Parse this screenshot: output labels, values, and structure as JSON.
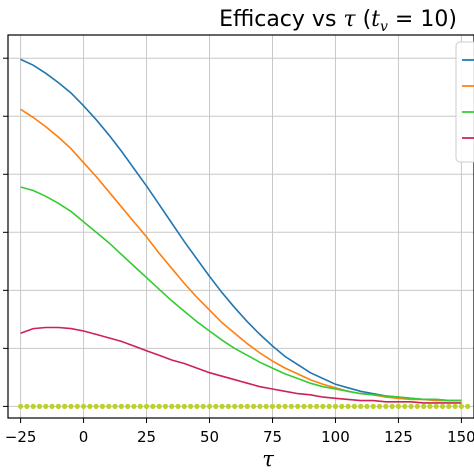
{
  "chart_data": {
    "type": "line",
    "title": "Efficacy vs τ (t_v = 10)",
    "title_parts": {
      "prefix": "Efficacy vs ",
      "tau": "τ",
      "open": " (",
      "t": "t",
      "sub": "v",
      "eq": " = 10)"
    },
    "xlabel": "τ",
    "ylabel": "",
    "xlim": [
      -30,
      155
    ],
    "ylim": [
      -0.1,
      3.2
    ],
    "x_ticks": [
      -25,
      0,
      25,
      50,
      75,
      100,
      125,
      150
    ],
    "x_tick_labels": [
      "−25",
      "0",
      "25",
      "50",
      "75",
      "100",
      "125",
      "150"
    ],
    "y_gridlines": [
      0,
      0.5,
      1.0,
      1.5,
      2.0,
      2.5,
      3.0
    ],
    "grid": true,
    "legend_position": "top-right",
    "series": [
      {
        "color": "#1f77b4",
        "style": "solid",
        "x": [
          -25,
          -20,
          -15,
          -10,
          -5,
          0,
          5,
          10,
          15,
          20,
          25,
          30,
          35,
          40,
          45,
          50,
          55,
          60,
          65,
          70,
          75,
          80,
          85,
          90,
          95,
          100,
          105,
          110,
          115,
          120,
          125,
          130,
          135,
          140,
          145,
          150
        ],
        "y": [
          2.99,
          2.94,
          2.87,
          2.79,
          2.7,
          2.59,
          2.47,
          2.34,
          2.2,
          2.05,
          1.9,
          1.74,
          1.58,
          1.42,
          1.27,
          1.12,
          0.98,
          0.85,
          0.73,
          0.62,
          0.52,
          0.43,
          0.36,
          0.29,
          0.24,
          0.19,
          0.16,
          0.13,
          0.11,
          0.09,
          0.08,
          0.07,
          0.06,
          0.06,
          0.05,
          0.05
        ]
      },
      {
        "color": "#ff7f0e",
        "style": "solid",
        "x": [
          -25,
          -20,
          -15,
          -10,
          -5,
          0,
          5,
          10,
          15,
          20,
          25,
          30,
          35,
          40,
          45,
          50,
          55,
          60,
          65,
          70,
          75,
          80,
          85,
          90,
          95,
          100,
          105,
          110,
          115,
          120,
          125,
          130,
          135,
          140,
          145,
          150
        ],
        "y": [
          2.56,
          2.49,
          2.41,
          2.32,
          2.22,
          2.1,
          1.98,
          1.85,
          1.72,
          1.59,
          1.46,
          1.32,
          1.19,
          1.06,
          0.94,
          0.83,
          0.72,
          0.63,
          0.54,
          0.46,
          0.39,
          0.33,
          0.28,
          0.23,
          0.19,
          0.16,
          0.13,
          0.11,
          0.1,
          0.08,
          0.07,
          0.06,
          0.06,
          0.05,
          0.05,
          0.05
        ]
      },
      {
        "color": "#33cc33",
        "style": "solid",
        "x": [
          -25,
          -20,
          -15,
          -10,
          -5,
          0,
          5,
          10,
          15,
          20,
          25,
          30,
          35,
          40,
          45,
          50,
          55,
          60,
          65,
          70,
          75,
          80,
          85,
          90,
          95,
          100,
          105,
          110,
          115,
          120,
          125,
          130,
          135,
          140,
          145,
          150
        ],
        "y": [
          1.89,
          1.86,
          1.81,
          1.75,
          1.68,
          1.59,
          1.5,
          1.41,
          1.31,
          1.21,
          1.11,
          1.01,
          0.91,
          0.82,
          0.73,
          0.65,
          0.57,
          0.5,
          0.44,
          0.38,
          0.33,
          0.28,
          0.24,
          0.2,
          0.17,
          0.15,
          0.13,
          0.11,
          0.1,
          0.09,
          0.08,
          0.07,
          0.06,
          0.06,
          0.05,
          0.05
        ]
      },
      {
        "color": "#cc2255",
        "style": "solid",
        "x": [
          -25,
          -20,
          -15,
          -10,
          -5,
          0,
          5,
          10,
          15,
          20,
          25,
          30,
          35,
          40,
          45,
          50,
          55,
          60,
          65,
          70,
          75,
          80,
          85,
          90,
          95,
          100,
          105,
          110,
          115,
          120,
          125,
          130,
          135,
          140,
          145,
          150
        ],
        "y": [
          0.63,
          0.67,
          0.68,
          0.68,
          0.67,
          0.65,
          0.62,
          0.59,
          0.56,
          0.52,
          0.48,
          0.44,
          0.4,
          0.37,
          0.33,
          0.29,
          0.26,
          0.23,
          0.2,
          0.17,
          0.15,
          0.13,
          0.11,
          0.1,
          0.08,
          0.07,
          0.06,
          0.05,
          0.05,
          0.04,
          0.04,
          0.04,
          0.03,
          0.03,
          0.03,
          0.03
        ]
      },
      {
        "color": "#bcd22a",
        "style": "dotted",
        "x": [
          -25,
          -20,
          -15,
          -10,
          -5,
          0,
          5,
          10,
          15,
          20,
          25,
          30,
          35,
          40,
          45,
          50,
          55,
          60,
          65,
          70,
          75,
          80,
          85,
          90,
          95,
          100,
          105,
          110,
          115,
          120,
          125,
          130,
          135,
          140,
          145,
          150
        ],
        "y": [
          0,
          0,
          0,
          0,
          0,
          0,
          0,
          0,
          0,
          0,
          0,
          0,
          0,
          0,
          0,
          0,
          0,
          0,
          0,
          0,
          0,
          0,
          0,
          0,
          0,
          0,
          0,
          0,
          0,
          0,
          0,
          0,
          0,
          0,
          0,
          0
        ]
      }
    ],
    "legend_entries": [
      {
        "color": "#1f77b4"
      },
      {
        "color": "#ff7f0e"
      },
      {
        "color": "#33cc33"
      },
      {
        "color": "#cc2255"
      }
    ]
  }
}
